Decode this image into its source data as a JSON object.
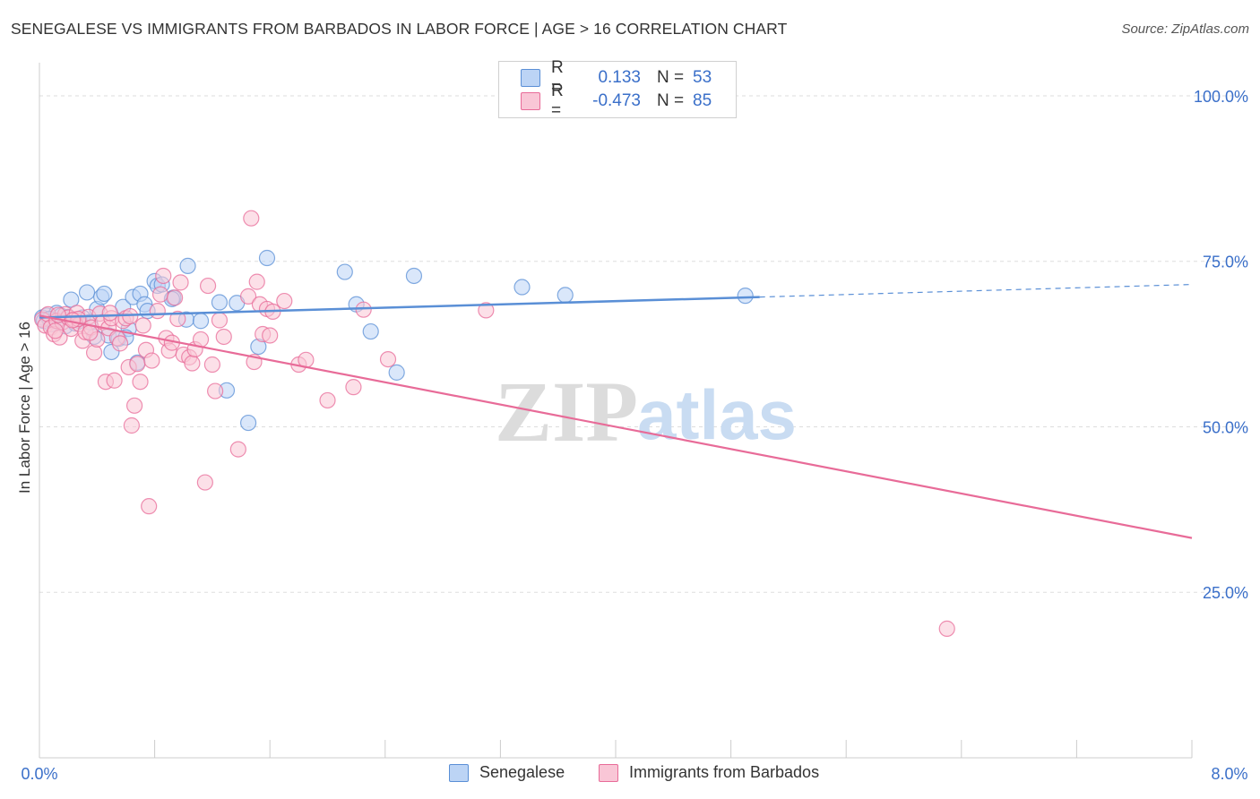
{
  "header": {
    "title": "SENEGALESE VS IMMIGRANTS FROM BARBADOS IN LABOR FORCE | AGE > 16 CORRELATION CHART",
    "source": "Source: ZipAtlas.com"
  },
  "watermark": {
    "zip": "ZIP",
    "atlas": "atlas"
  },
  "legend": {
    "rows": [
      {
        "r_label": "R =",
        "r_value": "0.133",
        "n_label": "N =",
        "n_value": "53",
        "color": "#5a8fd6",
        "fill": "#bcd4f5"
      },
      {
        "r_label": "R =",
        "r_value": "-0.473",
        "n_label": "N =",
        "n_value": "85",
        "color": "#e86b98",
        "fill": "#f9c6d6"
      }
    ]
  },
  "chart_data": {
    "type": "scatter",
    "xlabel": "",
    "ylabel": "In Labor Force | Age > 16",
    "xlim": [
      0,
      8
    ],
    "ylim": [
      0,
      105
    ],
    "x_tick_labels": [
      "0.0%",
      "8.0%"
    ],
    "y_ticks": [
      25,
      50,
      75,
      100
    ],
    "y_tick_labels": [
      "25.0%",
      "50.0%",
      "75.0%",
      "100.0%"
    ],
    "grid": true,
    "series": [
      {
        "name": "Senegalese",
        "color": "#5a8fd6",
        "fill": "#bcd4f5",
        "trend": {
          "x_start": 0,
          "y_start": 66.5,
          "x_solid_end": 5.0,
          "y_solid_end": 69.6,
          "x_end": 8.0,
          "y_end": 71.5
        },
        "points": [
          [
            0.02,
            66.5
          ],
          [
            0.05,
            66.8
          ],
          [
            0.08,
            65.5
          ],
          [
            0.1,
            66.0
          ],
          [
            0.12,
            67.2
          ],
          [
            0.15,
            66.8
          ],
          [
            0.18,
            65.2
          ],
          [
            0.2,
            66.6
          ],
          [
            0.22,
            69.2
          ],
          [
            0.25,
            65.6
          ],
          [
            0.28,
            66.0
          ],
          [
            0.3,
            66.5
          ],
          [
            0.33,
            70.3
          ],
          [
            0.35,
            65.8
          ],
          [
            0.38,
            63.6
          ],
          [
            0.4,
            67.8
          ],
          [
            0.43,
            69.6
          ],
          [
            0.45,
            70.1
          ],
          [
            0.48,
            63.8
          ],
          [
            0.5,
            61.3
          ],
          [
            0.55,
            63.3
          ],
          [
            0.58,
            68.1
          ],
          [
            0.62,
            64.8
          ],
          [
            0.65,
            69.6
          ],
          [
            0.68,
            59.7
          ],
          [
            0.7,
            70.1
          ],
          [
            0.73,
            68.5
          ],
          [
            0.75,
            67.5
          ],
          [
            0.8,
            72.0
          ],
          [
            0.82,
            71.3
          ],
          [
            0.85,
            71.5
          ],
          [
            0.93,
            69.5
          ],
          [
            1.02,
            66.2
          ],
          [
            1.03,
            74.3
          ],
          [
            1.12,
            66.0
          ],
          [
            1.25,
            68.8
          ],
          [
            1.3,
            55.5
          ],
          [
            1.37,
            68.7
          ],
          [
            1.45,
            50.6
          ],
          [
            1.52,
            62.1
          ],
          [
            1.58,
            75.5
          ],
          [
            2.12,
            73.4
          ],
          [
            2.2,
            68.5
          ],
          [
            2.3,
            64.4
          ],
          [
            2.48,
            58.2
          ],
          [
            2.6,
            72.8
          ],
          [
            3.35,
            71.1
          ],
          [
            3.65,
            69.9
          ],
          [
            4.9,
            69.8
          ],
          [
            0.6,
            63.5
          ],
          [
            0.92,
            69.3
          ],
          [
            0.03,
            66.0
          ],
          [
            0.07,
            66.3
          ]
        ]
      },
      {
        "name": "Immigrants from Barbados",
        "color": "#e86b98",
        "fill": "#f9c6d6",
        "trend": {
          "x_start": 0,
          "y_start": 66.8,
          "x_end": 8.0,
          "y_end": 33.2
        },
        "points": [
          [
            0.02,
            66.2
          ],
          [
            0.04,
            65.3
          ],
          [
            0.06,
            67.0
          ],
          [
            0.08,
            65.0
          ],
          [
            0.1,
            64.0
          ],
          [
            0.12,
            66.0
          ],
          [
            0.14,
            63.5
          ],
          [
            0.16,
            65.8
          ],
          [
            0.18,
            67.0
          ],
          [
            0.2,
            66.5
          ],
          [
            0.22,
            64.8
          ],
          [
            0.24,
            66.2
          ],
          [
            0.26,
            67.2
          ],
          [
            0.28,
            65.5
          ],
          [
            0.3,
            63.0
          ],
          [
            0.32,
            64.3
          ],
          [
            0.34,
            66.6
          ],
          [
            0.36,
            65.0
          ],
          [
            0.38,
            61.2
          ],
          [
            0.4,
            63.2
          ],
          [
            0.42,
            67.1
          ],
          [
            0.44,
            65.8
          ],
          [
            0.46,
            56.8
          ],
          [
            0.48,
            64.9
          ],
          [
            0.5,
            66.4
          ],
          [
            0.52,
            57.0
          ],
          [
            0.54,
            63.4
          ],
          [
            0.56,
            62.6
          ],
          [
            0.58,
            66.0
          ],
          [
            0.6,
            66.4
          ],
          [
            0.62,
            59.0
          ],
          [
            0.64,
            50.2
          ],
          [
            0.66,
            53.2
          ],
          [
            0.68,
            59.5
          ],
          [
            0.7,
            56.8
          ],
          [
            0.72,
            65.3
          ],
          [
            0.74,
            61.6
          ],
          [
            0.76,
            38.0
          ],
          [
            0.78,
            60.0
          ],
          [
            0.82,
            67.5
          ],
          [
            0.84,
            70.0
          ],
          [
            0.86,
            72.8
          ],
          [
            0.88,
            63.4
          ],
          [
            0.9,
            61.5
          ],
          [
            0.92,
            62.7
          ],
          [
            0.94,
            69.5
          ],
          [
            0.96,
            66.3
          ],
          [
            0.98,
            71.8
          ],
          [
            1.0,
            60.9
          ],
          [
            1.04,
            60.5
          ],
          [
            1.06,
            59.6
          ],
          [
            1.08,
            61.7
          ],
          [
            1.12,
            63.2
          ],
          [
            1.15,
            41.6
          ],
          [
            1.17,
            71.3
          ],
          [
            1.2,
            59.4
          ],
          [
            1.22,
            55.4
          ],
          [
            1.25,
            66.1
          ],
          [
            1.28,
            63.6
          ],
          [
            1.38,
            46.6
          ],
          [
            1.45,
            69.7
          ],
          [
            1.47,
            81.5
          ],
          [
            1.49,
            59.8
          ],
          [
            1.51,
            71.9
          ],
          [
            1.53,
            68.5
          ],
          [
            1.55,
            64.0
          ],
          [
            1.58,
            67.8
          ],
          [
            1.6,
            63.8
          ],
          [
            1.62,
            67.4
          ],
          [
            1.7,
            69.0
          ],
          [
            1.8,
            59.4
          ],
          [
            1.85,
            60.1
          ],
          [
            2.0,
            54.0
          ],
          [
            2.18,
            56.0
          ],
          [
            2.25,
            67.7
          ],
          [
            2.42,
            60.2
          ],
          [
            3.1,
            67.6
          ],
          [
            6.3,
            19.5
          ],
          [
            0.11,
            64.5
          ],
          [
            0.27,
            66.3
          ],
          [
            0.49,
            67.2
          ],
          [
            0.63,
            66.7
          ],
          [
            0.23,
            66.1
          ],
          [
            0.13,
            66.9
          ],
          [
            0.35,
            64.2
          ]
        ]
      }
    ]
  },
  "bottom_legend": {
    "items": [
      {
        "label": "Senegalese"
      },
      {
        "label": "Immigrants from Barbados"
      }
    ]
  }
}
